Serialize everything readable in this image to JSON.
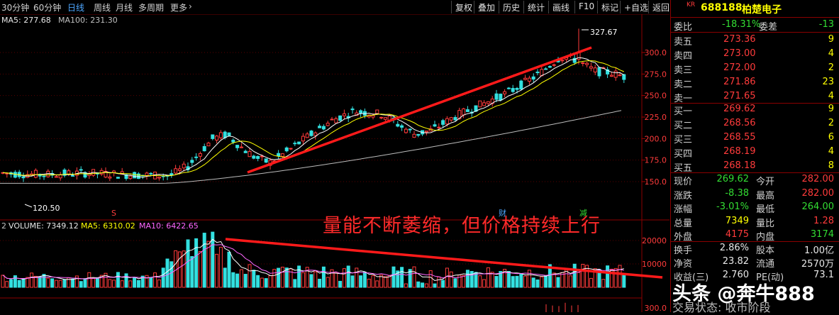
{
  "toolbar": {
    "periods": [
      {
        "label": "30分钟",
        "active": false
      },
      {
        "label": "60分钟",
        "active": false
      },
      {
        "label": "日线",
        "active": true
      },
      {
        "label": "周线",
        "active": false
      },
      {
        "label": "月线",
        "active": false
      },
      {
        "label": "多周期",
        "active": false
      },
      {
        "label": "更多",
        "active": false
      }
    ],
    "more_icon": "chevron-right-icon",
    "buttons": [
      "复权",
      "叠加",
      "历史",
      "统计",
      "画线",
      "F10",
      "标记",
      "+自选",
      "返回"
    ]
  },
  "kline": {
    "ma5_label": "MA5: 277.68",
    "ma100_label": "MA100: 231.30",
    "price_ticks": [
      "300.0",
      "275.0",
      "250.0",
      "225.0",
      "200.0",
      "175.0",
      "150.0"
    ],
    "high_label": "327.67",
    "low_label": "120.50",
    "marker_s": "S",
    "marker_cai": "财",
    "marker_jian": "减"
  },
  "volume": {
    "prefix": "2",
    "label": "VOLUME: 7349.12",
    "ma5": "MA5: 6310.02",
    "ma10": "MA10: 6422.65",
    "ticks": [
      "20000",
      "10000"
    ],
    "bottom_tick": "300.0"
  },
  "annotation": "量能不断萎缩，但价格持续上行",
  "stock": {
    "market": "KR",
    "code": "688188",
    "name": "柏楚电子"
  },
  "quote": {
    "weibi_label": "委比",
    "weibi": "-18.31%",
    "weicha_label": "委差",
    "weicha": "-13",
    "sells": [
      {
        "label": "卖五",
        "price": "273.36",
        "vol": "9"
      },
      {
        "label": "卖四",
        "price": "273.00",
        "vol": "4"
      },
      {
        "label": "卖三",
        "price": "272.00",
        "vol": "2"
      },
      {
        "label": "卖二",
        "price": "271.86",
        "vol": "23"
      },
      {
        "label": "卖一",
        "price": "271.65",
        "vol": "4"
      }
    ],
    "buys": [
      {
        "label": "买一",
        "price": "269.62",
        "vol": "9"
      },
      {
        "label": "买二",
        "price": "268.56",
        "vol": "2"
      },
      {
        "label": "买三",
        "price": "268.55",
        "vol": "6"
      },
      {
        "label": "买四",
        "price": "268.19",
        "vol": "4"
      },
      {
        "label": "买五",
        "price": "268.18",
        "vol": "8"
      }
    ],
    "stats": [
      {
        "l1": "现价",
        "v1": "269.62",
        "c1": "green",
        "l2": "今开",
        "v2": "282.00",
        "c2": "red"
      },
      {
        "l1": "涨跌",
        "v1": "-8.38",
        "c1": "green",
        "l2": "最高",
        "v2": "282.00",
        "c2": "red"
      },
      {
        "l1": "涨幅",
        "v1": "-3.01%",
        "c1": "green",
        "l2": "最低",
        "v2": "264.00",
        "c2": "green"
      },
      {
        "l1": "总量",
        "v1": "7349",
        "c1": "yellow",
        "l2": "量比",
        "v2": "1.28",
        "c2": "red"
      },
      {
        "l1": "外盘",
        "v1": "4175",
        "c1": "red",
        "l2": "内盘",
        "v2": "3174",
        "c2": "green"
      }
    ],
    "stats2": [
      {
        "l1": "换手",
        "v1": "2.86%",
        "l2": "股本",
        "v2": "1.00亿"
      },
      {
        "l1": "净资",
        "v1": "23.82",
        "l2": "流通",
        "v2": "2570万"
      },
      {
        "l1": "收益(三)",
        "v1": "2.760",
        "l2": "PE(动)",
        "v2": "73.1"
      }
    ]
  },
  "watermark": "头条 @奔牛888",
  "bottom_status": "交易状态: 收市阶段"
}
